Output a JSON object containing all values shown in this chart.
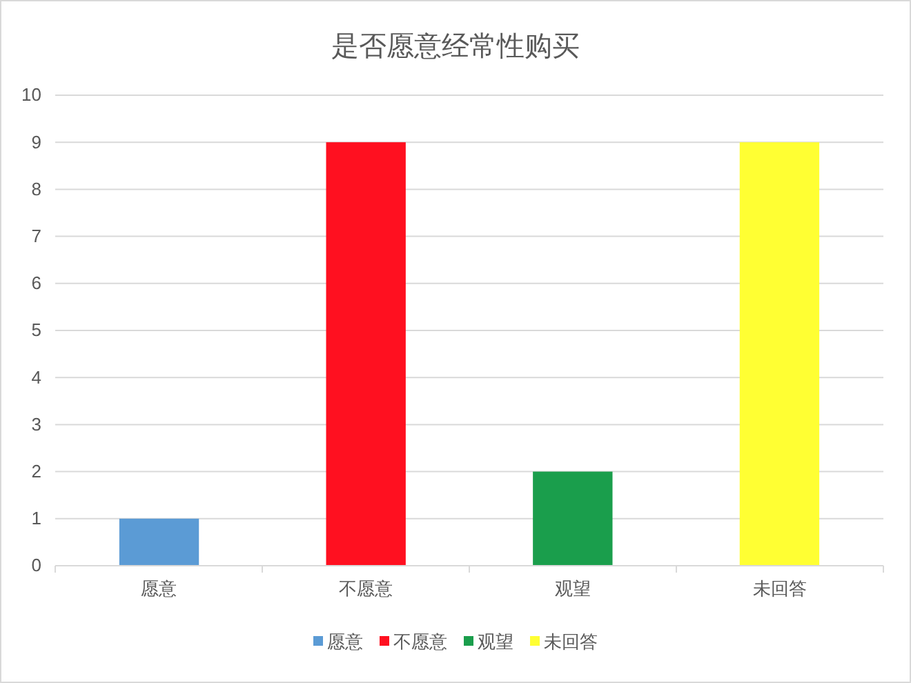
{
  "chart_data": {
    "type": "bar",
    "title": "是否愿意经常性购买",
    "categories": [
      "愿意",
      "不愿意",
      "观望",
      "未回答"
    ],
    "series": [
      {
        "name": "愿意",
        "color": "#5b9bd5",
        "values": [
          1,
          null,
          null,
          null
        ]
      },
      {
        "name": "不愿意",
        "color": "#ff1020",
        "values": [
          null,
          9,
          null,
          null
        ]
      },
      {
        "name": "观望",
        "color": "#1a9e4c",
        "values": [
          null,
          null,
          2,
          null
        ]
      },
      {
        "name": "未回答",
        "color": "#ffff33",
        "values": [
          null,
          null,
          null,
          9
        ]
      }
    ],
    "ylim": [
      0,
      10
    ],
    "yticks": [
      0,
      1,
      2,
      3,
      4,
      5,
      6,
      7,
      8,
      9,
      10
    ],
    "grid": "y",
    "legend": "bottom"
  }
}
